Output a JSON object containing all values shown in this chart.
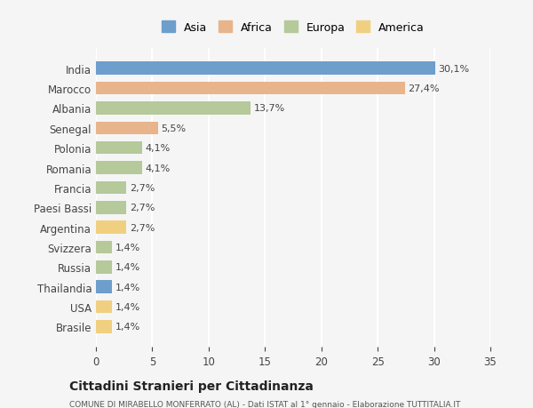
{
  "countries": [
    "India",
    "Marocco",
    "Albania",
    "Senegal",
    "Polonia",
    "Romania",
    "Francia",
    "Paesi Bassi",
    "Argentina",
    "Svizzera",
    "Russia",
    "Thailandia",
    "USA",
    "Brasile"
  ],
  "values": [
    30.1,
    27.4,
    13.7,
    5.5,
    4.1,
    4.1,
    2.7,
    2.7,
    2.7,
    1.4,
    1.4,
    1.4,
    1.4,
    1.4
  ],
  "labels": [
    "30,1%",
    "27,4%",
    "13,7%",
    "5,5%",
    "4,1%",
    "4,1%",
    "2,7%",
    "2,7%",
    "2,7%",
    "1,4%",
    "1,4%",
    "1,4%",
    "1,4%",
    "1,4%"
  ],
  "colors": [
    "#6d9ecc",
    "#e8b48c",
    "#b5c99a",
    "#e8b48c",
    "#b5c99a",
    "#b5c99a",
    "#b5c99a",
    "#b5c99a",
    "#f0d080",
    "#b5c99a",
    "#b5c99a",
    "#6d9ecc",
    "#f0d080",
    "#f0d080"
  ],
  "legend_labels": [
    "Asia",
    "Africa",
    "Europa",
    "America"
  ],
  "legend_colors": [
    "#6d9ecc",
    "#e8b48c",
    "#b5c99a",
    "#f0d080"
  ],
  "title": "Cittadini Stranieri per Cittadinanza",
  "subtitle": "COMUNE DI MIRABELLO MONFERRATO (AL) - Dati ISTAT al 1° gennaio - Elaborazione TUTTITALIA.IT",
  "xlim": [
    0,
    35
  ],
  "xticks": [
    0,
    5,
    10,
    15,
    20,
    25,
    30,
    35
  ],
  "background_color": "#f5f5f5",
  "grid_color": "#ffffff",
  "bar_height": 0.65
}
